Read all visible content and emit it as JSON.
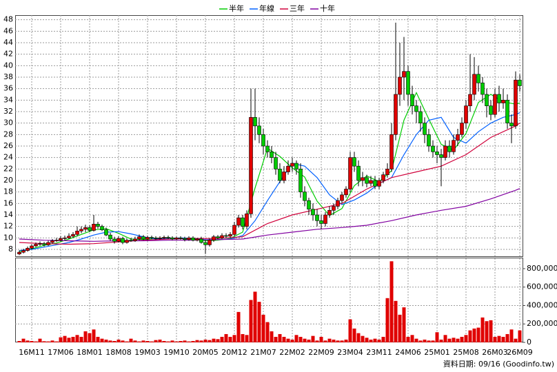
{
  "chart_data": [
    {
      "type": "candlestick",
      "legend": "top",
      "grid": true,
      "up_color": "#e00000",
      "down_color": "#00cc00",
      "categories": [
        null,
        null,
        null,
        "16M11",
        null,
        null,
        null,
        null,
        null,
        null,
        "17M06",
        null,
        null,
        null,
        null,
        null,
        null,
        "18M01",
        null,
        null,
        null,
        null,
        null,
        null,
        "18M08",
        null,
        null,
        null,
        null,
        null,
        null,
        "19M03",
        null,
        null,
        null,
        null,
        null,
        null,
        "19M10",
        null,
        null,
        null,
        null,
        null,
        null,
        "20M05",
        null,
        null,
        null,
        null,
        null,
        null,
        "20M12",
        null,
        null,
        null,
        null,
        null,
        null,
        "21M07",
        null,
        null,
        null,
        null,
        null,
        null,
        "22M02",
        null,
        null,
        null,
        null,
        null,
        null,
        "22M09",
        null,
        null,
        null,
        null,
        null,
        null,
        "23M04",
        null,
        null,
        null,
        null,
        null,
        null,
        "23M11",
        null,
        null,
        null,
        null,
        null,
        null,
        "24M06",
        null,
        null,
        null,
        null,
        null,
        null,
        "25M01",
        null,
        null,
        null,
        null,
        null,
        null,
        "25M08",
        null,
        null,
        null,
        null,
        null,
        null,
        "26M03",
        null,
        null,
        null,
        null,
        null,
        "26M09"
      ],
      "open": [
        7.2,
        7.5,
        7.8,
        8.2,
        8.6,
        8.9,
        9.0,
        8.8,
        9.2,
        9.5,
        9.6,
        9.9,
        10.0,
        10.3,
        10.6,
        11.2,
        11.5,
        11.8,
        11.3,
        12.4,
        12.0,
        11.4,
        10.5,
        9.8,
        9.4,
        9.9,
        9.2,
        9.6,
        9.5,
        9.8,
        10.2,
        9.8,
        10.1,
        10.0,
        9.9,
        10.0,
        10.1,
        10.0,
        9.8,
        10.0,
        9.9,
        9.7,
        10.0,
        9.6,
        9.8,
        9.2,
        8.8,
        9.6,
        10.2,
        10.0,
        10.4,
        10.3,
        10.6,
        12.2,
        13.5,
        12.0,
        14.2,
        31.0,
        29.5,
        28.0,
        26.0,
        25.0,
        24.0,
        22.0,
        20.0,
        21.5,
        22.5,
        23.0,
        22.0,
        18.0,
        16.5,
        15.0,
        14.0,
        13.0,
        12.5,
        14.0,
        14.8,
        15.5,
        16.5,
        17.5,
        18.5,
        24.0,
        22.5,
        20.0,
        20.5,
        19.5,
        20.0,
        19.0,
        20.0,
        21.0,
        22.0,
        28.0,
        35.0,
        38.0,
        39.0,
        35.0,
        33.0,
        32.0,
        30.0,
        28.0,
        26.0,
        25.0,
        24.5,
        24.0,
        26.0,
        25.0,
        27.0,
        28.0,
        30.0,
        33.0,
        35.0,
        38.5,
        37.0,
        35.0,
        33.0,
        31.5,
        35.0,
        33.5,
        34.0,
        30.0,
        29.5,
        37.5
      ],
      "high": [
        7.8,
        8.1,
        8.5,
        8.9,
        9.2,
        9.4,
        9.3,
        9.5,
        9.8,
        10.0,
        10.3,
        10.4,
        10.8,
        11.0,
        12.0,
        12.0,
        12.3,
        12.2,
        14.0,
        12.8,
        12.3,
        11.8,
        10.9,
        10.2,
        10.3,
        10.2,
        9.9,
        10.0,
        10.2,
        10.6,
        10.5,
        10.4,
        10.4,
        10.3,
        10.3,
        10.4,
        10.4,
        10.3,
        10.2,
        10.3,
        10.2,
        10.3,
        10.3,
        10.0,
        10.2,
        9.6,
        9.9,
        10.5,
        10.5,
        10.8,
        10.8,
        11.0,
        12.8,
        14.0,
        14.0,
        14.8,
        36.0,
        36.0,
        31.0,
        29.0,
        27.0,
        26.0,
        25.0,
        23.0,
        22.5,
        23.5,
        24.0,
        23.5,
        23.0,
        19.0,
        17.0,
        16.0,
        15.0,
        14.0,
        14.5,
        15.5,
        16.0,
        17.0,
        18.0,
        19.0,
        25.0,
        25.0,
        23.5,
        21.5,
        21.0,
        20.8,
        20.8,
        20.5,
        21.5,
        23.0,
        30.0,
        47.5,
        44.0,
        45.0,
        40.0,
        36.5,
        34.0,
        33.0,
        31.0,
        29.0,
        27.0,
        26.0,
        25.5,
        27.0,
        27.0,
        28.0,
        29.0,
        31.0,
        34.0,
        42.0,
        41.5,
        40.0,
        38.0,
        36.0,
        34.0,
        36.0,
        36.5,
        36.0,
        35.0,
        31.5,
        39.0,
        38.5
      ],
      "low": [
        7.0,
        7.3,
        7.6,
        8.0,
        8.4,
        8.6,
        8.5,
        8.6,
        9.0,
        9.3,
        9.4,
        9.6,
        9.8,
        10.0,
        10.3,
        10.8,
        11.0,
        11.0,
        11.1,
        11.6,
        11.2,
        10.3,
        9.5,
        9.0,
        9.2,
        8.9,
        9.0,
        9.3,
        9.3,
        9.6,
        9.6,
        9.6,
        9.8,
        9.7,
        9.7,
        9.8,
        9.8,
        9.6,
        9.6,
        9.7,
        9.4,
        9.5,
        9.4,
        9.4,
        9.0,
        7.2,
        8.5,
        9.3,
        9.8,
        9.8,
        10.0,
        10.0,
        10.3,
        11.8,
        11.5,
        11.5,
        13.5,
        27.0,
        26.5,
        24.5,
        24.0,
        23.0,
        21.0,
        19.5,
        19.5,
        21.0,
        21.5,
        21.0,
        17.0,
        15.5,
        14.0,
        13.0,
        12.0,
        11.5,
        12.0,
        13.5,
        14.0,
        15.0,
        16.0,
        17.0,
        18.0,
        21.5,
        19.0,
        19.0,
        18.8,
        19.0,
        18.5,
        18.5,
        19.5,
        20.5,
        21.5,
        27.0,
        33.0,
        34.0,
        33.0,
        31.5,
        30.0,
        28.5,
        26.5,
        25.0,
        24.0,
        23.0,
        19.0,
        23.5,
        24.0,
        24.5,
        26.0,
        27.5,
        29.0,
        32.0,
        34.0,
        35.5,
        33.5,
        31.0,
        30.5,
        31.0,
        32.0,
        32.5,
        29.0,
        26.5,
        29.0,
        35.5
      ],
      "close": [
        7.5,
        7.8,
        8.2,
        8.6,
        8.9,
        9.0,
        8.8,
        9.2,
        9.5,
        9.6,
        9.9,
        10.0,
        10.3,
        10.6,
        11.2,
        11.5,
        11.8,
        11.3,
        12.4,
        12.0,
        11.4,
        10.5,
        9.8,
        9.4,
        9.9,
        9.2,
        9.6,
        9.5,
        9.8,
        10.2,
        9.8,
        10.1,
        10.0,
        9.9,
        10.0,
        10.1,
        10.0,
        9.8,
        10.0,
        9.9,
        9.7,
        10.0,
        9.6,
        9.8,
        9.2,
        8.8,
        9.6,
        10.2,
        10.0,
        10.4,
        10.3,
        10.6,
        12.2,
        13.5,
        12.0,
        14.2,
        31.0,
        29.5,
        28.0,
        26.0,
        25.0,
        24.0,
        22.0,
        20.0,
        21.5,
        22.5,
        23.0,
        22.0,
        18.0,
        16.5,
        15.0,
        14.0,
        13.0,
        12.5,
        14.0,
        14.8,
        15.5,
        16.5,
        17.5,
        18.5,
        24.0,
        22.5,
        20.0,
        20.5,
        19.5,
        20.0,
        19.0,
        20.0,
        21.0,
        22.0,
        28.0,
        35.0,
        38.0,
        39.0,
        35.0,
        33.0,
        32.0,
        30.0,
        28.0,
        26.0,
        25.0,
        24.5,
        24.0,
        26.0,
        25.0,
        27.0,
        28.0,
        30.0,
        33.0,
        35.0,
        38.5,
        37.0,
        35.0,
        33.0,
        31.5,
        35.0,
        33.5,
        34.0,
        30.0,
        29.5,
        37.5,
        36.5
      ],
      "series": [
        {
          "name": "半年",
          "color": "#00cc00",
          "x": [
            0,
            3,
            6,
            9,
            12,
            15,
            18,
            21,
            24,
            27,
            30,
            33,
            36,
            39,
            42,
            45,
            48,
            51,
            54,
            57,
            60,
            63,
            66,
            69,
            72,
            75,
            78,
            81,
            84,
            87,
            90,
            93,
            96,
            99,
            102,
            105,
            108,
            111,
            114,
            117,
            120,
            121
          ],
          "values": [
            7.6,
            8.1,
            8.7,
            9.1,
            9.8,
            10.6,
            11.4,
            11.6,
            10.8,
            9.8,
            9.7,
            9.9,
            10.0,
            9.95,
            9.9,
            9.5,
            9.6,
            9.9,
            11.0,
            18.7,
            25.6,
            24.2,
            22.2,
            20.6,
            16.4,
            13.9,
            15.1,
            19.1,
            20.8,
            19.8,
            21.7,
            30.5,
            35.3,
            30.7,
            26.3,
            25.3,
            28.2,
            33.6,
            35.0,
            33.7,
            33.3,
            33.5
          ]
        },
        {
          "name": "年線",
          "color": "#0060ff",
          "x": [
            0,
            3,
            6,
            9,
            12,
            15,
            18,
            21,
            24,
            27,
            30,
            33,
            36,
            39,
            42,
            45,
            48,
            51,
            54,
            57,
            60,
            63,
            66,
            69,
            72,
            75,
            78,
            81,
            84,
            87,
            90,
            93,
            96,
            99,
            102,
            105,
            108,
            111,
            114,
            117,
            120,
            121
          ],
          "values": [
            7.8,
            8.0,
            8.4,
            8.8,
            9.2,
            9.8,
            10.5,
            11.0,
            11.1,
            10.7,
            10.2,
            9.8,
            9.9,
            10.0,
            9.9,
            9.7,
            9.7,
            9.8,
            10.4,
            13.0,
            16.5,
            19.8,
            23.0,
            22.5,
            20.5,
            17.5,
            15.8,
            16.6,
            17.8,
            19.5,
            20.5,
            24.5,
            28.0,
            30.5,
            31.0,
            27.5,
            26.5,
            28.5,
            30.0,
            31.0,
            31.5,
            31.8
          ]
        },
        {
          "name": "三年",
          "color": "#d0003a",
          "x": [
            0,
            6,
            12,
            18,
            24,
            30,
            36,
            42,
            48,
            54,
            60,
            66,
            72,
            78,
            84,
            90,
            96,
            102,
            108,
            114,
            120,
            121
          ],
          "values": [
            9.2,
            9.0,
            8.9,
            9.0,
            9.3,
            9.6,
            9.8,
            9.9,
            9.9,
            10.2,
            12.5,
            14.0,
            15.0,
            16.0,
            18.5,
            20.5,
            21.5,
            22.5,
            24.5,
            27.5,
            29.5,
            30.0
          ]
        },
        {
          "name": "十年",
          "color": "#8000a0",
          "x": [
            0,
            6,
            12,
            18,
            24,
            30,
            36,
            42,
            48,
            54,
            60,
            66,
            72,
            78,
            84,
            90,
            96,
            102,
            108,
            114,
            120,
            121
          ],
          "values": [
            9.8,
            9.6,
            9.5,
            9.4,
            9.5,
            9.5,
            9.6,
            9.6,
            9.7,
            9.8,
            10.5,
            11.0,
            11.5,
            11.8,
            12.2,
            13.0,
            14.0,
            14.8,
            15.5,
            16.8,
            18.3,
            18.6
          ]
        }
      ],
      "ylim": [
        6.8,
        48.8
      ],
      "yticks": [
        8,
        10,
        12,
        14,
        16,
        18,
        20,
        22,
        24,
        26,
        28,
        30,
        32,
        34,
        36,
        38,
        40,
        42,
        44,
        46,
        48
      ]
    },
    {
      "type": "bar",
      "color": "#e00000",
      "grid": true,
      "values": [
        15000,
        40000,
        20000,
        15000,
        10000,
        40000,
        12000,
        10000,
        20000,
        10000,
        55000,
        70000,
        50000,
        60000,
        80000,
        60000,
        120000,
        100000,
        140000,
        60000,
        40000,
        30000,
        20000,
        15000,
        30000,
        20000,
        10000,
        40000,
        20000,
        10000,
        20000,
        15000,
        10000,
        25000,
        30000,
        15000,
        10000,
        20000,
        10000,
        15000,
        20000,
        10000,
        15000,
        25000,
        20000,
        30000,
        25000,
        40000,
        35000,
        60000,
        90000,
        60000,
        80000,
        330000,
        90000,
        80000,
        460000,
        550000,
        440000,
        300000,
        220000,
        120000,
        60000,
        90000,
        60000,
        40000,
        30000,
        80000,
        60000,
        40000,
        30000,
        70000,
        20000,
        60000,
        20000,
        40000,
        30000,
        20000,
        20000,
        30000,
        250000,
        150000,
        100000,
        70000,
        50000,
        30000,
        40000,
        30000,
        60000,
        480000,
        880000,
        450000,
        300000,
        380000,
        60000,
        80000,
        40000,
        20000,
        30000,
        20000,
        20000,
        110000,
        30000,
        80000,
        40000,
        50000,
        40000,
        60000,
        80000,
        130000,
        150000,
        160000,
        270000,
        230000,
        240000,
        60000,
        70000,
        60000,
        90000,
        140000,
        40000,
        130000
      ],
      "ylim": [
        0,
        912000
      ],
      "yticks": [
        0,
        {
          "value": 200000,
          "label": "200,000"
        },
        {
          "value": 400000,
          "label": "400,000"
        },
        {
          "value": 600000,
          "label": "600,000"
        },
        {
          "value": 800000,
          "label": "800,000"
        }
      ]
    }
  ],
  "footer": "資料日期: 09/16 (Goodinfo.tw)"
}
